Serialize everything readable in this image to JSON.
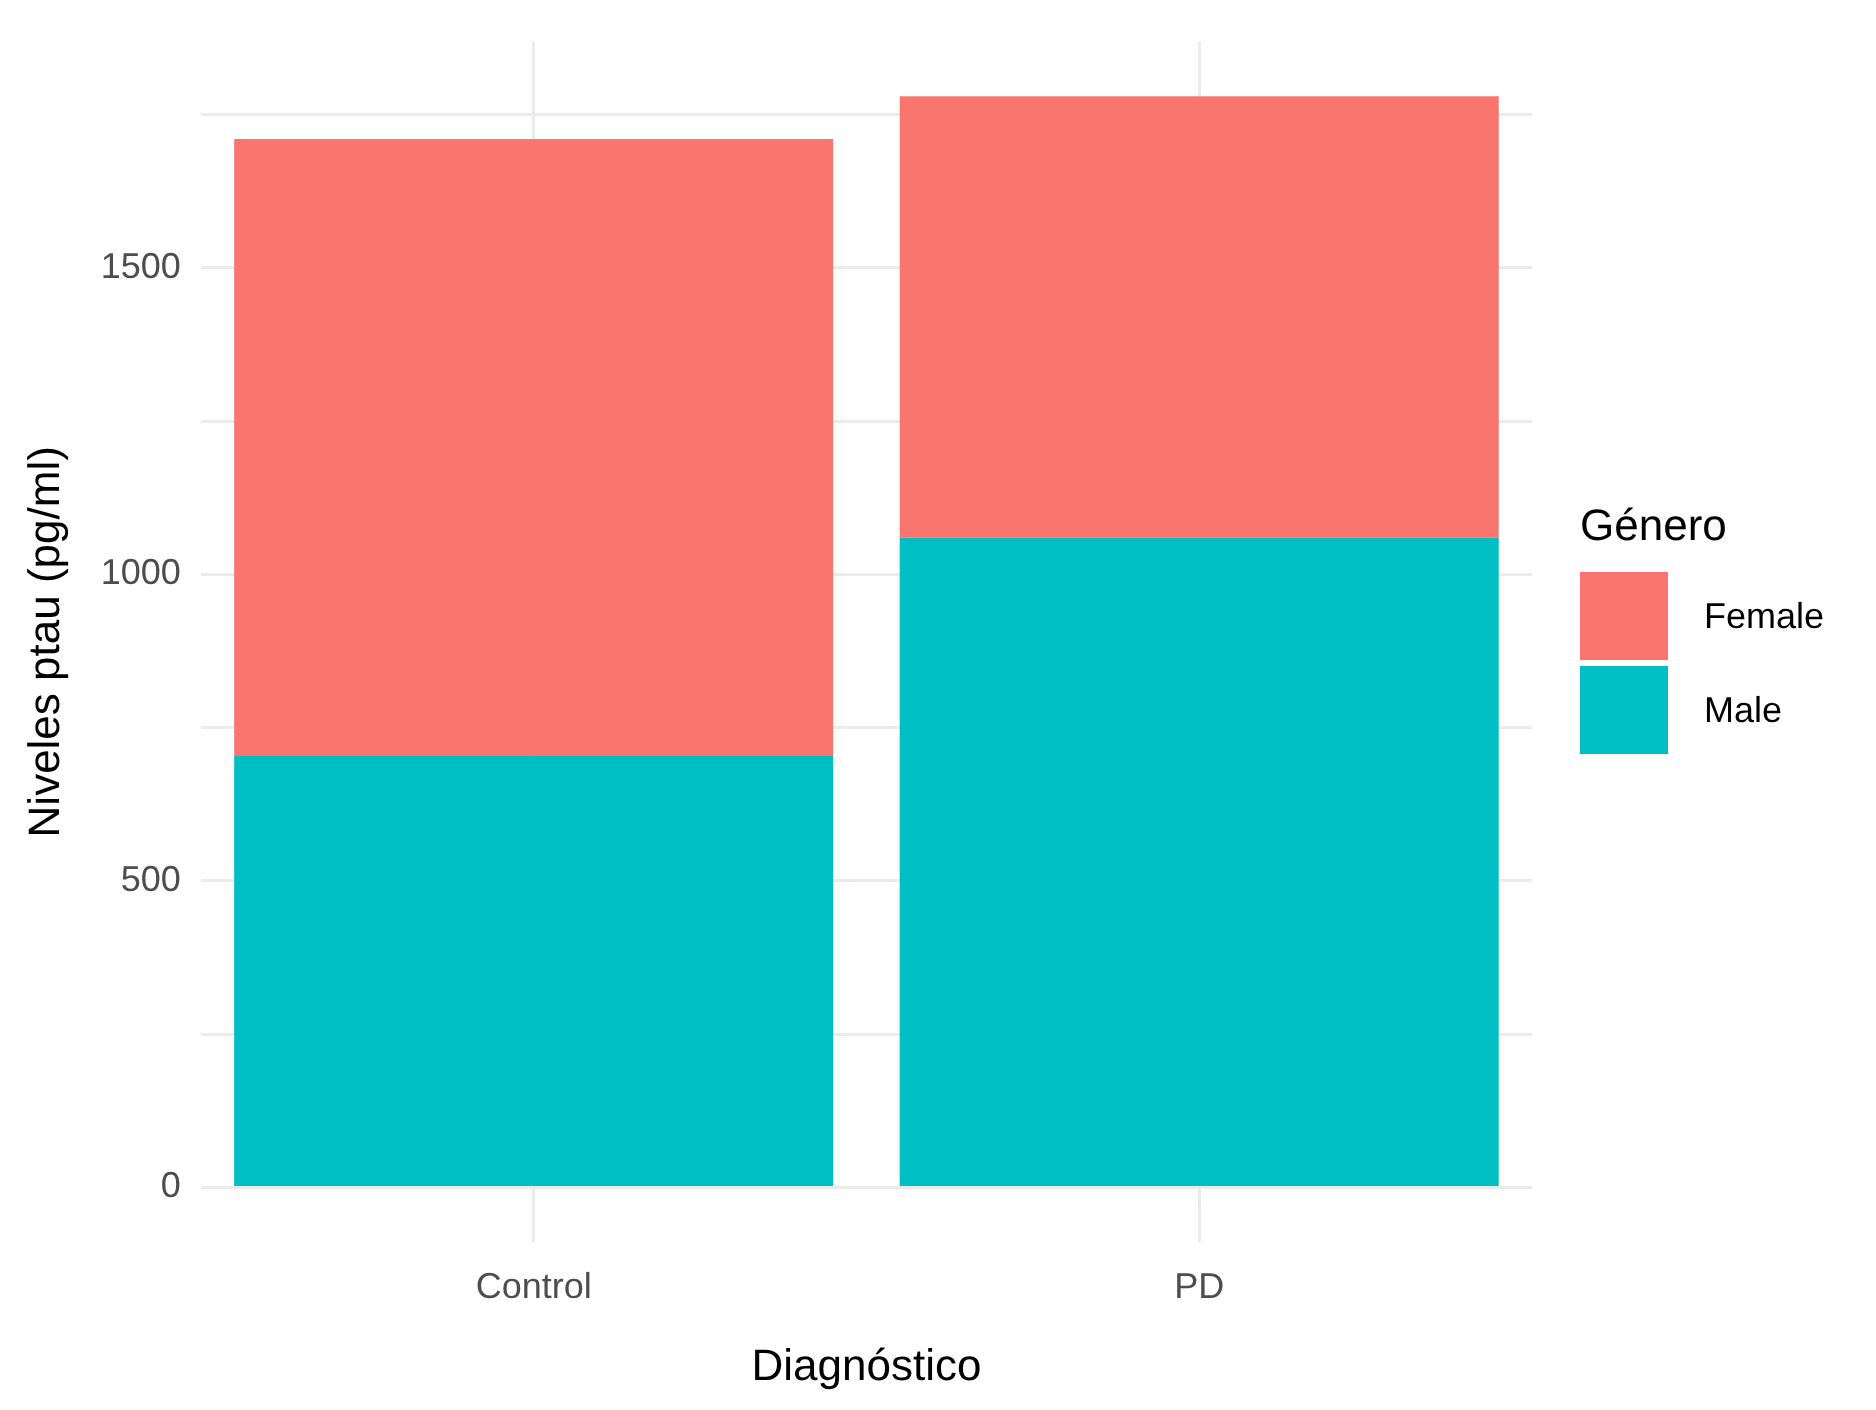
{
  "chart_data": {
    "type": "bar",
    "xlabel": "Diagnóstico",
    "ylabel": "Niveles ptau (pg/ml)",
    "legend_title": "Género",
    "categories": [
      "Control",
      "PD"
    ],
    "series": [
      {
        "name": "Male",
        "color": "#00bfc4",
        "values": [
          705,
          1060
        ]
      },
      {
        "name": "Female",
        "color": "#f8766d",
        "values": [
          1005,
          720
        ]
      }
    ],
    "stacked": true,
    "ylim": [
      -89,
      1869
    ],
    "yticks": [
      0,
      {
        "value": 250,
        "label": null
      },
      500,
      {
        "value": 750,
        "label": null
      },
      1000,
      {
        "value": 1250,
        "label": null
      },
      1500,
      {
        "value": 1750,
        "label": null
      }
    ],
    "grid": true,
    "legend": "right"
  }
}
